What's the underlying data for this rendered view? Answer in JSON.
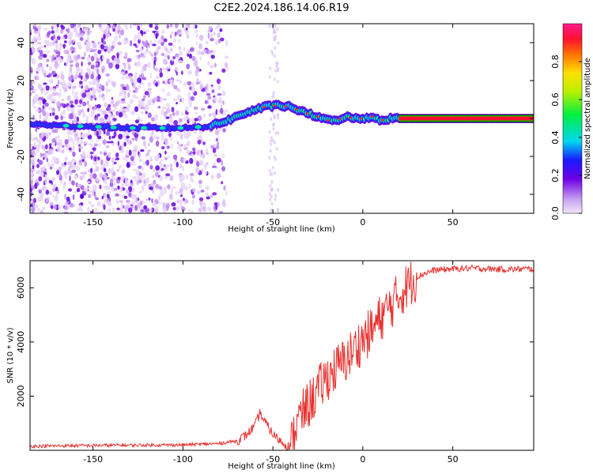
{
  "title": "C2E2.2024.186.14.06.R19",
  "chart_data": [
    {
      "type": "heatmap",
      "name": "spectrogram",
      "xlabel": "Height of straight line (km)",
      "ylabel": "Frequency (Hz)",
      "xlim": [
        -185,
        95
      ],
      "ylim": [
        -50,
        50
      ],
      "xticks": [
        -150,
        -100,
        -50,
        0,
        50
      ],
      "yticks": [
        -40,
        -20,
        0,
        20,
        40
      ],
      "xtick_labels": [
        "-150",
        "-100",
        "-50",
        "0",
        "50"
      ],
      "ytick_labels": [
        "-40",
        "-20",
        "0",
        "20",
        "40"
      ],
      "ridge": {
        "x": [
          -185,
          -160,
          -130,
          -100,
          -85,
          -75,
          -65,
          -55,
          -47,
          -40,
          -32,
          -25,
          -20,
          -15,
          -10,
          -5,
          0,
          5,
          10,
          15,
          95
        ],
        "y": [
          -3,
          -4,
          -5,
          -5,
          -4,
          -1,
          3,
          6,
          7,
          6,
          3,
          1,
          -1,
          -1,
          1,
          0,
          0,
          1,
          -1,
          0,
          0
        ]
      },
      "noise_region_x": [
        -185,
        -75
      ],
      "colorbar": {
        "label": "Normalized spectral amplitude",
        "range": [
          0,
          1
        ],
        "ticks": [
          0.0,
          0.2,
          0.4,
          0.6,
          0.8
        ],
        "tick_labels": [
          "0.0",
          "0.2",
          "0.4",
          "0.6",
          "0.8"
        ]
      }
    },
    {
      "type": "line",
      "name": "snr",
      "xlabel": "Height of straight line (km)",
      "ylabel": "SNR (10 * v/v)",
      "xlim": [
        -185,
        95
      ],
      "ylim": [
        0,
        7000
      ],
      "xticks": [
        -150,
        -100,
        -50,
        0,
        50
      ],
      "yticks": [
        2000,
        4000,
        6000
      ],
      "xtick_labels": [
        "-150",
        "-100",
        "-50",
        "0",
        "50"
      ],
      "ytick_labels": [
        "2000",
        "4000",
        "6000"
      ],
      "series": [
        {
          "name": "SNR",
          "color": "#e8312f",
          "x": [
            -185,
            -150,
            -100,
            -80,
            -70,
            -65,
            -60,
            -57,
            -55,
            -50,
            -45,
            -40,
            -38,
            -35,
            -30,
            -25,
            -20,
            -15,
            -10,
            -5,
            0,
            5,
            10,
            15,
            20,
            25,
            30,
            35,
            40,
            50,
            60,
            70,
            80,
            95
          ],
          "y": [
            150,
            180,
            200,
            250,
            350,
            550,
            900,
            1400,
            1100,
            600,
            300,
            100,
            700,
            1200,
            1700,
            2200,
            2700,
            3000,
            3300,
            3700,
            4100,
            4400,
            4900,
            5300,
            5700,
            6100,
            6400,
            6550,
            6650,
            6700,
            6720,
            6700,
            6680,
            6700
          ]
        }
      ]
    }
  ]
}
